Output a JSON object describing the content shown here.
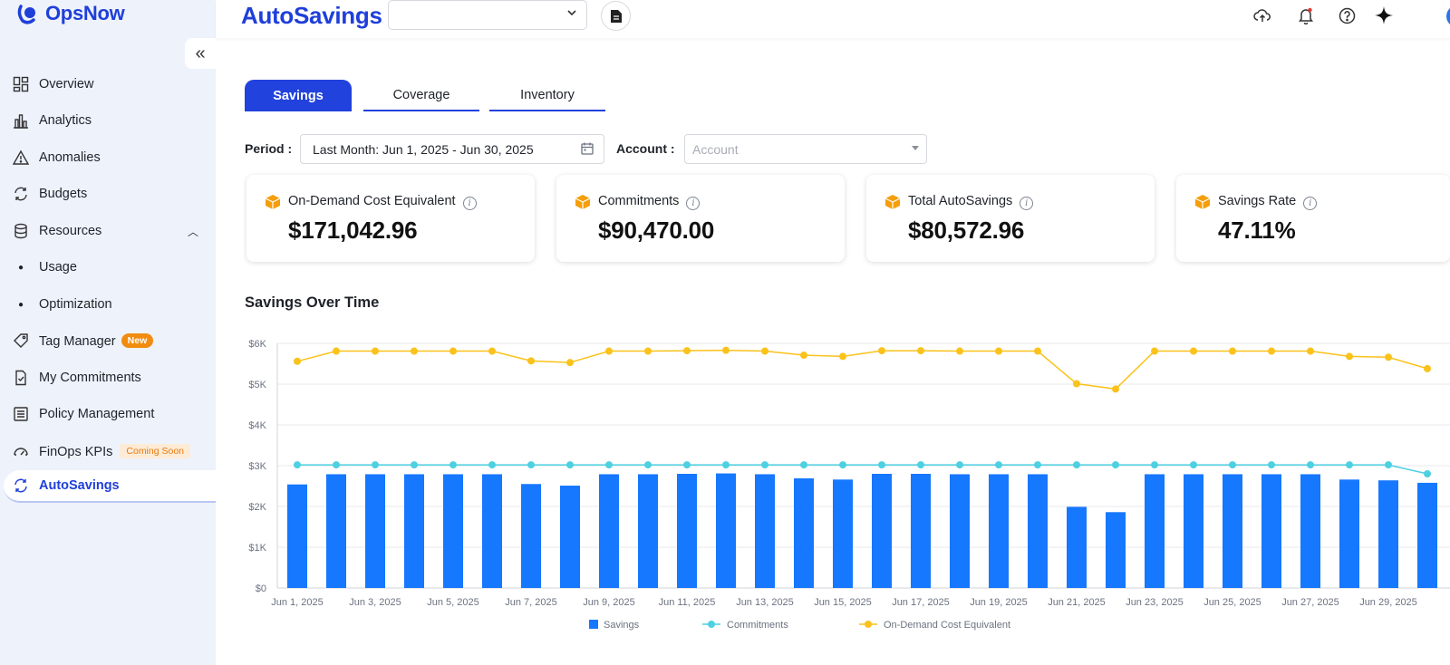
{
  "app": {
    "logo_text": "OpsNow"
  },
  "sidebar": {
    "items": [
      {
        "label": "Overview",
        "icon": "dashboard-icon"
      },
      {
        "label": "Analytics",
        "icon": "bar-chart-icon"
      },
      {
        "label": "Anomalies",
        "icon": "warning-icon"
      },
      {
        "label": "Budgets",
        "icon": "refresh-icon"
      },
      {
        "label": "Resources",
        "icon": "database-icon"
      },
      {
        "label": "Usage",
        "icon": "bullet-icon"
      },
      {
        "label": "Optimization",
        "icon": "bullet-icon"
      },
      {
        "label": "Tag Manager",
        "icon": "tag-icon",
        "badge": "New"
      },
      {
        "label": "My Commitments",
        "icon": "checklist-icon"
      },
      {
        "label": "Policy Management",
        "icon": "list-icon"
      },
      {
        "label": "FinOps KPIs",
        "icon": "gauge-icon",
        "badge": "Coming Soon"
      },
      {
        "label": "AutoSavings",
        "icon": "cycle-icon"
      }
    ]
  },
  "header": {
    "title": "AutoSavings",
    "select_value": ""
  },
  "tabs": [
    {
      "label": "Savings"
    },
    {
      "label": "Coverage"
    },
    {
      "label": "Inventory"
    }
  ],
  "filters": {
    "period_label": "Period :",
    "period_value": "Last Month: Jun 1, 2025 - Jun 30, 2025",
    "account_label": "Account :",
    "account_placeholder": "Account"
  },
  "cards": [
    {
      "title": "On-Demand Cost Equivalent",
      "value": "$171,042.96"
    },
    {
      "title": "Commitments",
      "value": "$90,470.00"
    },
    {
      "title": "Total AutoSavings",
      "value": "$80,572.96"
    },
    {
      "title": "Savings Rate",
      "value": "47.11%"
    }
  ],
  "colors": {
    "brand": "#1f3fd9",
    "savings": "#1677ff",
    "commitments": "#4dd0e1",
    "on_demand": "#fac21a"
  },
  "section_title": "Savings Over Time",
  "chart_data": {
    "type": "bar",
    "x": [
      "Jun 1, 2025",
      "Jun 2, 2025",
      "Jun 3, 2025",
      "Jun 4, 2025",
      "Jun 5, 2025",
      "Jun 6, 2025",
      "Jun 7, 2025",
      "Jun 8, 2025",
      "Jun 9, 2025",
      "Jun 10, 2025",
      "Jun 11, 2025",
      "Jun 12, 2025",
      "Jun 13, 2025",
      "Jun 14, 2025",
      "Jun 15, 2025",
      "Jun 16, 2025",
      "Jun 17, 2025",
      "Jun 18, 2025",
      "Jun 19, 2025",
      "Jun 20, 2025",
      "Jun 21, 2025",
      "Jun 22, 2025",
      "Jun 23, 2025",
      "Jun 24, 2025",
      "Jun 25, 2025",
      "Jun 26, 2025",
      "Jun 27, 2025",
      "Jun 28, 2025",
      "Jun 29, 2025",
      "Jun 30, 2025"
    ],
    "tick_labels": [
      "Jun 1, 2025",
      "Jun 3, 2025",
      "Jun 5, 2025",
      "Jun 7, 2025",
      "Jun 9, 2025",
      "Jun 11, 2025",
      "Jun 13, 2025",
      "Jun 15, 2025",
      "Jun 17, 2025",
      "Jun 19, 2025",
      "Jun 21, 2025",
      "Jun 23, 2025",
      "Jun 25, 2025",
      "Jun 27, 2025",
      "Jun 29, 2025"
    ],
    "y_ticks": [
      "$0",
      "$1K",
      "$2K",
      "$3K",
      "$4K",
      "$5K",
      "$6K"
    ],
    "ylim": [
      0,
      6000
    ],
    "grid": true,
    "legend_position": "bottom",
    "series": [
      {
        "name": "Savings",
        "type": "bar",
        "values": [
          2540,
          2790,
          2790,
          2790,
          2790,
          2790,
          2550,
          2510,
          2790,
          2790,
          2800,
          2810,
          2790,
          2690,
          2660,
          2800,
          2800,
          2790,
          2790,
          2790,
          1990,
          1860,
          2790,
          2790,
          2790,
          2790,
          2790,
          2660,
          2640,
          2580
        ]
      },
      {
        "name": "Commitments",
        "type": "line",
        "values": [
          3020,
          3020,
          3020,
          3020,
          3020,
          3020,
          3020,
          3020,
          3020,
          3020,
          3020,
          3020,
          3020,
          3020,
          3020,
          3020,
          3020,
          3020,
          3020,
          3020,
          3020,
          3020,
          3020,
          3020,
          3020,
          3020,
          3020,
          3020,
          3020,
          2800
        ]
      },
      {
        "name": "On-Demand Cost Equivalent",
        "type": "line",
        "values": [
          5560,
          5810,
          5810,
          5810,
          5810,
          5810,
          5570,
          5530,
          5810,
          5810,
          5820,
          5830,
          5810,
          5710,
          5680,
          5820,
          5820,
          5810,
          5810,
          5810,
          5010,
          4880,
          5810,
          5810,
          5810,
          5810,
          5810,
          5680,
          5660,
          5380
        ]
      }
    ]
  }
}
